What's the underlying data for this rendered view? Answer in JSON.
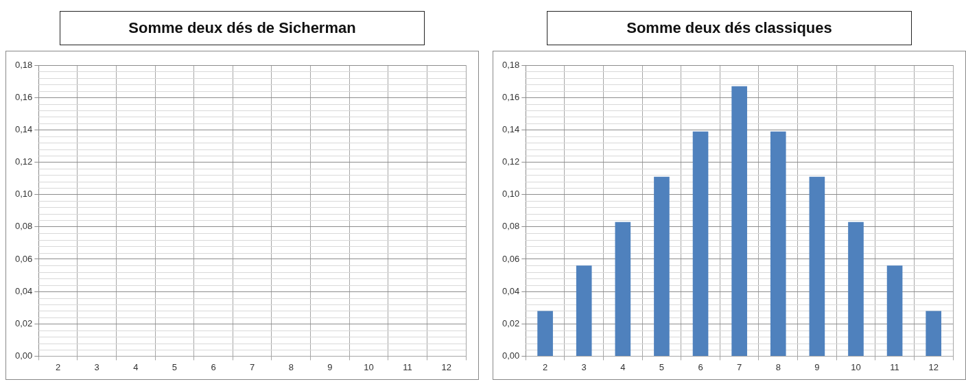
{
  "chart_data": [
    {
      "type": "bar",
      "title": "Somme deux dés de Sicherman",
      "categories": [
        "2",
        "3",
        "4",
        "5",
        "6",
        "7",
        "8",
        "9",
        "10",
        "11",
        "12"
      ],
      "values": [
        null,
        null,
        null,
        null,
        null,
        null,
        null,
        null,
        null,
        null,
        null
      ],
      "color": "#4f81bd",
      "ylim": [
        0,
        0.18
      ],
      "yticks": [
        {
          "value": 0,
          "label": "0,00"
        },
        {
          "value": 0.02,
          "label": "0,02"
        },
        {
          "value": 0.04,
          "label": "0,04"
        },
        {
          "value": 0.06,
          "label": "0,06"
        },
        {
          "value": 0.08,
          "label": "0,08"
        },
        {
          "value": 0.1,
          "label": "0,10"
        },
        {
          "value": 0.12,
          "label": "0,12"
        },
        {
          "value": 0.14,
          "label": "0,14"
        },
        {
          "value": 0.16,
          "label": "0,16"
        },
        {
          "value": 0.18,
          "label": "0,18"
        }
      ],
      "grid": true
    },
    {
      "type": "bar",
      "title": "Somme deux dés classiques",
      "categories": [
        "2",
        "3",
        "4",
        "5",
        "6",
        "7",
        "8",
        "9",
        "10",
        "11",
        "12"
      ],
      "values": [
        0.028,
        0.056,
        0.083,
        0.111,
        0.139,
        0.167,
        0.139,
        0.111,
        0.083,
        0.056,
        0.028
      ],
      "color": "#4f81bd",
      "ylim": [
        0,
        0.18
      ],
      "yticks": [
        {
          "value": 0,
          "label": "0,00"
        },
        {
          "value": 0.02,
          "label": "0,02"
        },
        {
          "value": 0.04,
          "label": "0,04"
        },
        {
          "value": 0.06,
          "label": "0,06"
        },
        {
          "value": 0.08,
          "label": "0,08"
        },
        {
          "value": 0.1,
          "label": "0,10"
        },
        {
          "value": 0.12,
          "label": "0,12"
        },
        {
          "value": 0.14,
          "label": "0,14"
        },
        {
          "value": 0.16,
          "label": "0,16"
        },
        {
          "value": 0.18,
          "label": "0,18"
        }
      ],
      "grid": true
    }
  ]
}
